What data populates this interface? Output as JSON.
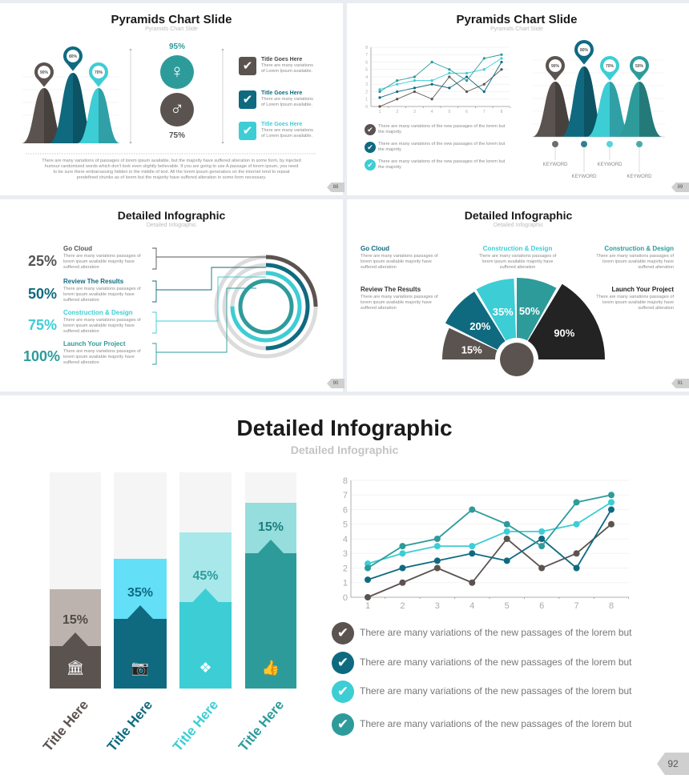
{
  "colors": {
    "gray": "#5b5350",
    "dark_teal": "#0f6a80",
    "cyan": "#3dcdd5",
    "teal": "#2e9b9b",
    "black": "#232323",
    "light_gray": "#bdb3ae"
  },
  "s88": {
    "title": "Pyramids Chart Slide",
    "subtitle": "Pyramids Chart Slide",
    "page": "88",
    "pins": [
      "90%",
      "80%",
      "70%"
    ],
    "female_pct": "95%",
    "male_pct": "75%",
    "items": [
      {
        "title": "Title Goes Here",
        "line1": "There are many variations",
        "line2": "of Lorem Ipsum available."
      },
      {
        "title": "Title Goes Here",
        "line1": "There are many variations",
        "line2": "of Lorem Ipsum available."
      },
      {
        "title": "Title Goes Here",
        "line1": "There are many variations",
        "line2": "of Lorem Ipsum available."
      }
    ],
    "paragraph": [
      "There are many variations of passages of lorem ipsum available, but the majority have suffered alteration in some form, by injected",
      "humour randomized words which don't look even slightly believable. If you are going to use A passage of lorem ipsum, you need",
      "to be sure there embarrassing hidden in the middle of text. All the lorem ipsum generators on the internet tend to repeat",
      "predefined chunks as of lorem but the majority have suffered alteration in some form  necessary."
    ]
  },
  "s89": {
    "title": "Pyramids Chart Slide",
    "subtitle": "Pyramids Chart Slide",
    "page": "89",
    "pins": [
      "90%",
      "80%",
      "70%",
      "50%"
    ],
    "keywords": [
      "KEYWORD",
      "KEYWORD",
      "KEYWORD",
      "KEYWORD"
    ],
    "items": [
      {
        "line1": "There are many variations of the  new passages of the  lorem but",
        "line2": "the majority"
      },
      {
        "line1": "There are many variations of the  new passages of the lorem but",
        "line2": "the majority"
      },
      {
        "line1": "There are many variations of the  new passages of the lorem but",
        "line2": "the majority"
      }
    ]
  },
  "s90": {
    "title": "Detailed Infographic",
    "subtitle": "Detailed Infographic",
    "page": "90",
    "items": [
      {
        "pct": "25%",
        "title": "Go Cloud",
        "lines": [
          "There are many variations passages of",
          "lorem ipsum available  majority have",
          "suffered alteration"
        ]
      },
      {
        "pct": "50%",
        "title": "Review The Results",
        "lines": [
          "There are many variations passages of",
          "lorem ipsum available  majority have",
          "suffered alteration"
        ]
      },
      {
        "pct": "75%",
        "title": "Construction & Design",
        "lines": [
          "There are many variations passages of",
          "lorem ipsum available  majority have",
          "suffered alteration"
        ]
      },
      {
        "pct": "100%",
        "title": "Launch Your Project",
        "lines": [
          "There are many variations passages of",
          "lorem ipsum available  majority have",
          "suffered alteration"
        ]
      }
    ],
    "ring_progress": [
      0.25,
      0.5,
      0.75,
      1.0
    ]
  },
  "s91": {
    "title": "Detailed Infographic",
    "subtitle": "Detailed Infographic",
    "page": "91",
    "items": [
      {
        "title": "Go Cloud",
        "lines": [
          "There are many variations passages of",
          "lorem ipsum available  majority have",
          "suffered alteration"
        ]
      },
      {
        "title": "Construction & Design",
        "lines": [
          "There are many variations passages of",
          "lorem ipsum available  majority have",
          "suffered alteration"
        ]
      },
      {
        "title": "Construction & Design",
        "lines": [
          "There are many variations passages of",
          "lorem ipsum available  majority have",
          "suffered alteration"
        ]
      },
      {
        "title": "Review The Results",
        "lines": [
          "There are many variations passages of",
          "lorem ipsum available  majority have",
          "suffered alteration"
        ]
      },
      {
        "title": "Launch Your Project",
        "lines": [
          "There are many variations passages of",
          "lorem ipsum available  majority have",
          "suffered alteration"
        ]
      }
    ],
    "segments": [
      "15%",
      "20%",
      "35%",
      "50%",
      "90%"
    ]
  },
  "s92": {
    "title": "Detailed Infographic",
    "subtitle": "Detailed Infographic",
    "page": "92",
    "bars": [
      {
        "label": "15%",
        "title": "Title Here",
        "icon": "bank-icon"
      },
      {
        "label": "35%",
        "title": "Title Here",
        "icon": "camera-icon"
      },
      {
        "label": "45%",
        "title": "Title Here",
        "icon": "dropbox-icon"
      },
      {
        "label": "15%",
        "title": "Title Here",
        "icon": "thumbs-up-icon"
      }
    ],
    "notes": [
      "There are many variations of the  new passages of the  lorem but",
      "There are many variations of the  new passages of the lorem but",
      "There are many variations of the  new passages of the lorem but",
      "There are many variations of the  new passages of the lorem but"
    ]
  },
  "chart_data": [
    {
      "type": "line",
      "title": "",
      "x": [
        1,
        2,
        3,
        4,
        5,
        6,
        7,
        8
      ],
      "yticks": [
        0,
        1,
        2,
        3,
        4,
        5,
        6,
        7,
        8
      ],
      "ylim": [
        0,
        8
      ],
      "grid": true,
      "series": [
        {
          "name": "gray",
          "values": [
            0,
            1,
            2,
            1,
            4,
            2,
            3,
            5
          ]
        },
        {
          "name": "dark teal",
          "values": [
            1.2,
            2,
            2.5,
            3,
            2.5,
            4,
            2,
            6
          ]
        },
        {
          "name": "cyan",
          "values": [
            2.3,
            3,
            3.5,
            3.5,
            4.5,
            4.5,
            5,
            6.5
          ]
        },
        {
          "name": "teal",
          "values": [
            2,
            3.5,
            4,
            6,
            5,
            3.5,
            6.5,
            7
          ]
        }
      ]
    },
    {
      "type": "line",
      "title": "",
      "x": [
        1,
        2,
        3,
        4,
        5,
        6,
        7,
        8
      ],
      "yticks": [
        0,
        1,
        2,
        3,
        4,
        5,
        6,
        7,
        8
      ],
      "ylim": [
        0,
        8
      ],
      "grid": true,
      "series": [
        {
          "name": "gray",
          "values": [
            0,
            1,
            2,
            1,
            4,
            2,
            3,
            5
          ]
        },
        {
          "name": "dark teal",
          "values": [
            1.2,
            2,
            2.5,
            3,
            2.5,
            4,
            2,
            6
          ]
        },
        {
          "name": "cyan",
          "values": [
            2.3,
            3,
            3.5,
            3.5,
            4.5,
            4.5,
            5,
            6.5
          ]
        },
        {
          "name": "teal",
          "values": [
            2,
            3.5,
            4,
            6,
            5,
            3.5,
            6.5,
            7
          ]
        }
      ]
    }
  ]
}
